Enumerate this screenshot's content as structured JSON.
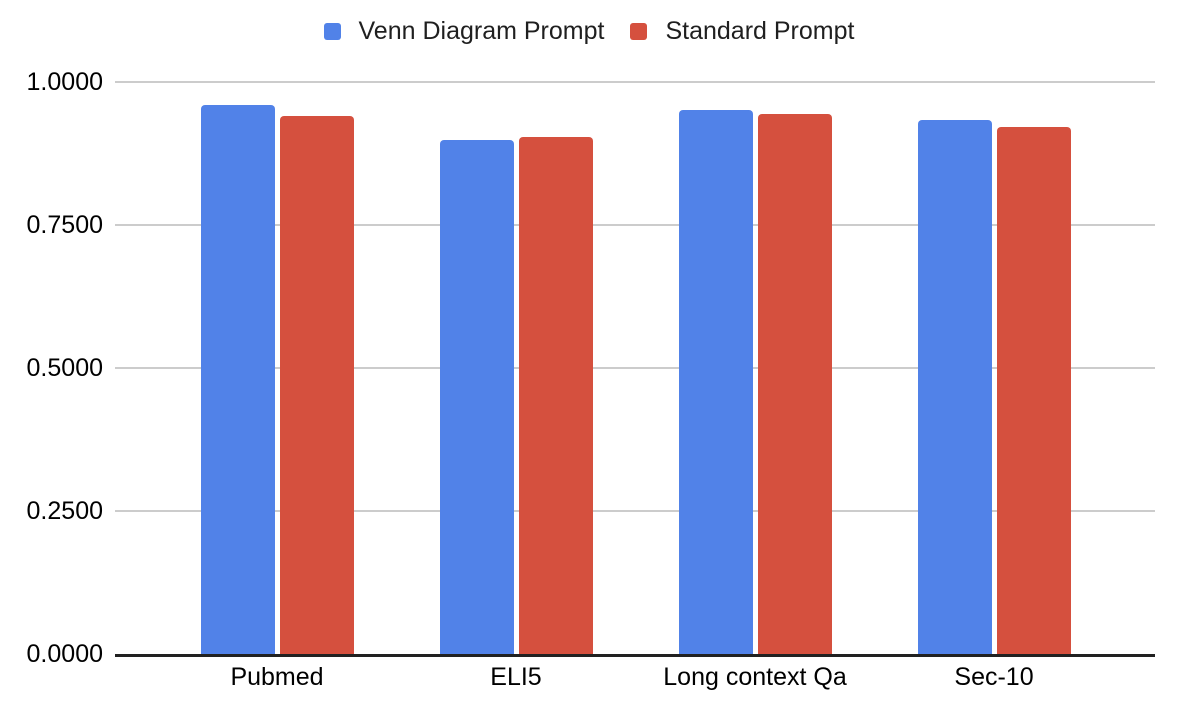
{
  "chart_data": {
    "type": "bar",
    "title": "",
    "categories": [
      "Pubmed",
      "ELI5",
      "Long context Qa",
      "Sec-10"
    ],
    "series": [
      {
        "name": "Venn Diagram Prompt",
        "color": "#5182E8",
        "values": [
          0.96,
          0.898,
          0.951,
          0.934
        ]
      },
      {
        "name": "Standard Prompt",
        "color": "#D5503E",
        "values": [
          0.94,
          0.903,
          0.944,
          0.921
        ]
      }
    ],
    "xlabel": "",
    "ylabel": "",
    "ylim": [
      0,
      1
    ],
    "yticks": [
      0,
      0.25,
      0.5,
      0.75,
      1
    ],
    "ytick_labels": [
      "0.0000",
      "0.2500",
      "0.5000",
      "0.7500",
      "1.0000"
    ],
    "grid": true,
    "legend_position": "top",
    "colors": {
      "background": "#ffffff",
      "gridline": "#cccccc",
      "axis_line": "#212121",
      "tick_text": "#000000",
      "legend_text": "#1f1f1f"
    }
  }
}
